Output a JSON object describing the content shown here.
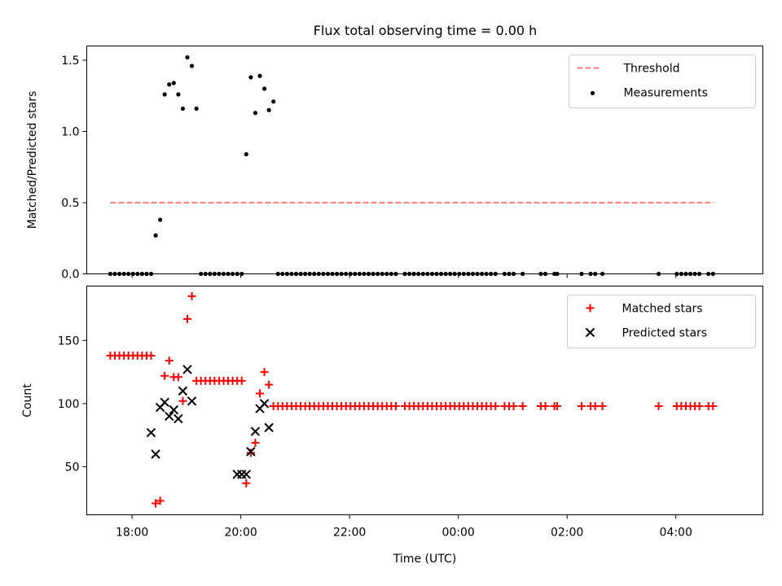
{
  "figure": {
    "title": "Flux total observing time = 0.00 h"
  },
  "chart_data": [
    {
      "type": "scatter",
      "panel": "top",
      "title": "Flux total observing time = 0.00 h",
      "xlabel": "",
      "ylabel": "Matched/Predicted stars",
      "x_unit": "hours UTC, continuing past midnight",
      "xlim": [
        "17:10",
        "05:36"
      ],
      "ylim": [
        0,
        1.6
      ],
      "yticks": [
        "0.0",
        "0.5",
        "1.0",
        "1.5"
      ],
      "xticks": [
        "18:00",
        "20:00",
        "22:00",
        "00:00",
        "02:00",
        "04:00"
      ],
      "x_ticklabels_visible": false,
      "legend_placement": "top-right",
      "series": [
        {
          "name": "Threshold",
          "type": "line",
          "style": "dashed",
          "color": "#ff7f7f",
          "x": [
            "17:36",
            "04:42"
          ],
          "y": [
            0.5,
            0.5
          ]
        },
        {
          "name": "Measurements",
          "type": "scatter",
          "color": "#000000",
          "x": [
            "17:36",
            "17:41",
            "17:46",
            "17:51",
            "17:56",
            "18:01",
            "18:06",
            "18:11",
            "18:16",
            "18:21",
            "18:26",
            "18:31",
            "18:36",
            "18:41",
            "18:46",
            "18:51",
            "18:56",
            "19:01",
            "19:06",
            "19:11",
            "19:16",
            "19:21",
            "19:26",
            "19:31",
            "19:36",
            "19:41",
            "19:46",
            "19:51",
            "19:56",
            "20:01",
            "20:06",
            "20:11",
            "20:16",
            "20:21",
            "20:26",
            "20:31",
            "20:36",
            "20:41",
            "20:46",
            "20:51",
            "20:56",
            "21:01",
            "21:06",
            "21:11",
            "21:16",
            "21:21",
            "21:26",
            "21:31",
            "21:36",
            "21:41",
            "21:46",
            "21:51",
            "21:56",
            "22:01",
            "22:06",
            "22:11",
            "22:16",
            "22:21",
            "22:26",
            "22:31",
            "22:36",
            "22:41",
            "22:46",
            "22:51",
            "23:01",
            "23:06",
            "23:11",
            "23:16",
            "23:21",
            "23:26",
            "23:31",
            "23:36",
            "23:41",
            "23:46",
            "23:51",
            "23:56",
            "00:01",
            "00:06",
            "00:11",
            "00:16",
            "00:21",
            "00:26",
            "00:31",
            "00:36",
            "00:41",
            "00:51",
            "00:56",
            "01:01",
            "01:11",
            "01:31",
            "01:36",
            "01:46",
            "01:49",
            "02:16",
            "02:26",
            "02:31",
            "02:39",
            "03:41",
            "04:01",
            "04:06",
            "04:11",
            "04:16",
            "04:21",
            "04:26",
            "04:36",
            "04:41"
          ],
          "y": [
            0.0,
            0.0,
            0.0,
            0.0,
            0.0,
            0.0,
            0.0,
            0.0,
            0.0,
            0.0,
            0.27,
            0.38,
            1.26,
            1.33,
            1.34,
            1.26,
            1.16,
            1.52,
            1.46,
            1.16,
            0.0,
            0.0,
            0.0,
            0.0,
            0.0,
            0.0,
            0.0,
            0.0,
            0.0,
            0.0,
            0.84,
            1.38,
            1.13,
            1.39,
            1.3,
            1.15,
            1.21,
            0.0,
            0.0,
            0.0,
            0.0,
            0.0,
            0.0,
            0.0,
            0.0,
            0.0,
            0.0,
            0.0,
            0.0,
            0.0,
            0.0,
            0.0,
            0.0,
            0.0,
            0.0,
            0.0,
            0.0,
            0.0,
            0.0,
            0.0,
            0.0,
            0.0,
            0.0,
            0.0,
            0.0,
            0.0,
            0.0,
            0.0,
            0.0,
            0.0,
            0.0,
            0.0,
            0.0,
            0.0,
            0.0,
            0.0,
            0.0,
            0.0,
            0.0,
            0.0,
            0.0,
            0.0,
            0.0,
            0.0,
            0.0,
            0.0,
            0.0,
            0.0,
            0.0,
            0.0,
            0.0,
            0.0,
            0.0,
            0.0,
            0.0,
            0.0,
            0.0,
            0.0,
            0.0,
            0.0,
            0.0,
            0.0,
            0.0,
            0.0,
            0.0,
            0.0
          ]
        }
      ]
    },
    {
      "type": "scatter",
      "panel": "bottom",
      "title": "",
      "xlabel": "Time (UTC)",
      "ylabel": "Count",
      "x_unit": "hours UTC, continuing past midnight",
      "xlim": [
        "17:10",
        "05:36"
      ],
      "ylim": [
        12,
        193
      ],
      "yticks": [
        "50",
        "100",
        "150"
      ],
      "xticks": [
        "18:00",
        "20:00",
        "22:00",
        "00:00",
        "02:00",
        "04:00"
      ],
      "legend_placement": "top-right",
      "series": [
        {
          "name": "Matched stars",
          "marker": "+",
          "color": "#ff0000",
          "x": [
            "17:36",
            "17:41",
            "17:46",
            "17:51",
            "17:56",
            "18:01",
            "18:06",
            "18:11",
            "18:16",
            "18:21",
            "18:26",
            "18:31",
            "18:36",
            "18:41",
            "18:46",
            "18:51",
            "18:56",
            "19:01",
            "19:06",
            "19:11",
            "19:16",
            "19:21",
            "19:26",
            "19:31",
            "19:36",
            "19:41",
            "19:46",
            "19:51",
            "19:56",
            "20:01",
            "20:06",
            "20:11",
            "20:16",
            "20:21",
            "20:26",
            "20:31",
            "20:36",
            "20:41",
            "20:46",
            "20:51",
            "20:56",
            "21:01",
            "21:06",
            "21:11",
            "21:16",
            "21:21",
            "21:26",
            "21:31",
            "21:36",
            "21:41",
            "21:46",
            "21:51",
            "21:56",
            "22:01",
            "22:06",
            "22:11",
            "22:16",
            "22:21",
            "22:26",
            "22:31",
            "22:36",
            "22:41",
            "22:46",
            "22:51",
            "23:01",
            "23:06",
            "23:11",
            "23:16",
            "23:21",
            "23:26",
            "23:31",
            "23:36",
            "23:41",
            "23:46",
            "23:51",
            "23:56",
            "00:01",
            "00:06",
            "00:11",
            "00:16",
            "00:21",
            "00:26",
            "00:31",
            "00:36",
            "00:41",
            "00:51",
            "00:56",
            "01:01",
            "01:11",
            "01:31",
            "01:36",
            "01:46",
            "01:49",
            "02:16",
            "02:26",
            "02:31",
            "02:39",
            "03:41",
            "04:01",
            "04:06",
            "04:11",
            "04:16",
            "04:21",
            "04:26",
            "04:36",
            "04:41"
          ],
          "y": [
            138,
            138,
            138,
            138,
            138,
            138,
            138,
            138,
            138,
            138,
            21,
            23,
            122,
            134,
            121,
            121,
            102,
            167,
            185,
            118,
            118,
            118,
            118,
            118,
            118,
            118,
            118,
            118,
            118,
            118,
            37,
            61,
            69,
            108,
            125,
            115,
            98,
            98,
            98,
            98,
            98,
            98,
            98,
            98,
            98,
            98,
            98,
            98,
            98,
            98,
            98,
            98,
            98,
            98,
            98,
            98,
            98,
            98,
            98,
            98,
            98,
            98,
            98,
            98,
            98,
            98,
            98,
            98,
            98,
            98,
            98,
            98,
            98,
            98,
            98,
            98,
            98,
            98,
            98,
            98,
            98,
            98,
            98,
            98,
            98,
            98,
            98,
            98,
            98,
            98,
            98,
            98,
            98,
            98,
            98,
            98,
            98,
            98,
            98,
            98,
            98,
            98,
            98,
            98,
            98,
            98
          ]
        },
        {
          "name": "Predicted stars",
          "marker": "x",
          "color": "#000000",
          "x": [
            "18:21",
            "18:26",
            "18:31",
            "18:36",
            "18:41",
            "18:46",
            "18:51",
            "18:56",
            "19:01",
            "19:06",
            "19:56",
            "20:01",
            "20:06",
            "20:11",
            "20:16",
            "20:21",
            "20:26",
            "20:31"
          ],
          "y": [
            77,
            60,
            97,
            101,
            90,
            95,
            88,
            110,
            127,
            102,
            44,
            44,
            44,
            62,
            78,
            96,
            100,
            81
          ]
        }
      ]
    }
  ]
}
